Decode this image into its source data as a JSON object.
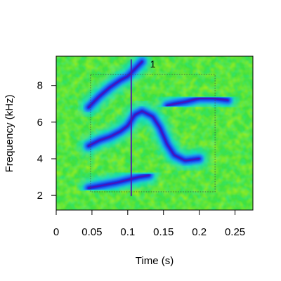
{
  "chart_data": {
    "type": "heatmap",
    "title": "",
    "xlabel": "Time (s)",
    "ylabel": "Frequency (kHz)",
    "xlim": [
      0,
      0.275
    ],
    "ylim": [
      1.2,
      9.6
    ],
    "x_ticks": [
      0,
      0.05,
      0.1,
      0.15,
      0.2,
      0.25
    ],
    "x_tick_labels": [
      "0",
      "0.05",
      "0.1",
      "0.15",
      "0.2",
      "0.25"
    ],
    "y_ticks": [
      2,
      4,
      6,
      8
    ],
    "y_tick_labels": [
      "2",
      "4",
      "6",
      "8"
    ],
    "colormap": [
      "#00e000",
      "#a8f000",
      "#f0f000",
      "#00d8f8",
      "#2080ff",
      "#1818e0",
      "#5010b0"
    ],
    "background_color": "#40e040",
    "selection_box": {
      "label": "1",
      "x_range": [
        0.048,
        0.222
      ],
      "y_range": [
        2.2,
        8.6
      ],
      "line_style": "dotted"
    },
    "calls": [
      {
        "points": [
          [
            0.045,
            2.4
          ],
          [
            0.065,
            2.55
          ],
          [
            0.085,
            2.7
          ],
          [
            0.1,
            2.85
          ],
          [
            0.115,
            3.0
          ],
          [
            0.13,
            3.1
          ]
        ]
      },
      {
        "points": [
          [
            0.045,
            4.7
          ],
          [
            0.06,
            5.0
          ],
          [
            0.075,
            5.2
          ],
          [
            0.09,
            5.5
          ],
          [
            0.1,
            5.8
          ],
          [
            0.11,
            6.4
          ],
          [
            0.12,
            6.6
          ],
          [
            0.135,
            6.3
          ],
          [
            0.145,
            5.7
          ],
          [
            0.155,
            4.8
          ],
          [
            0.165,
            4.2
          ],
          [
            0.18,
            3.9
          ],
          [
            0.2,
            4.0
          ]
        ]
      },
      {
        "points": [
          [
            0.045,
            6.8
          ],
          [
            0.06,
            7.4
          ],
          [
            0.075,
            7.9
          ],
          [
            0.09,
            8.3
          ],
          [
            0.1,
            8.5
          ],
          [
            0.11,
            8.9
          ],
          [
            0.12,
            9.3
          ]
        ]
      },
      {
        "points": [
          [
            0.155,
            6.9
          ],
          [
            0.165,
            7.0
          ],
          [
            0.18,
            7.1
          ],
          [
            0.2,
            7.3
          ],
          [
            0.22,
            7.3
          ],
          [
            0.24,
            7.2
          ]
        ]
      },
      {
        "points": [
          [
            0.105,
            9.4
          ],
          [
            0.105,
            7.0
          ],
          [
            0.105,
            4.5
          ],
          [
            0.105,
            2.0
          ]
        ]
      }
    ]
  }
}
